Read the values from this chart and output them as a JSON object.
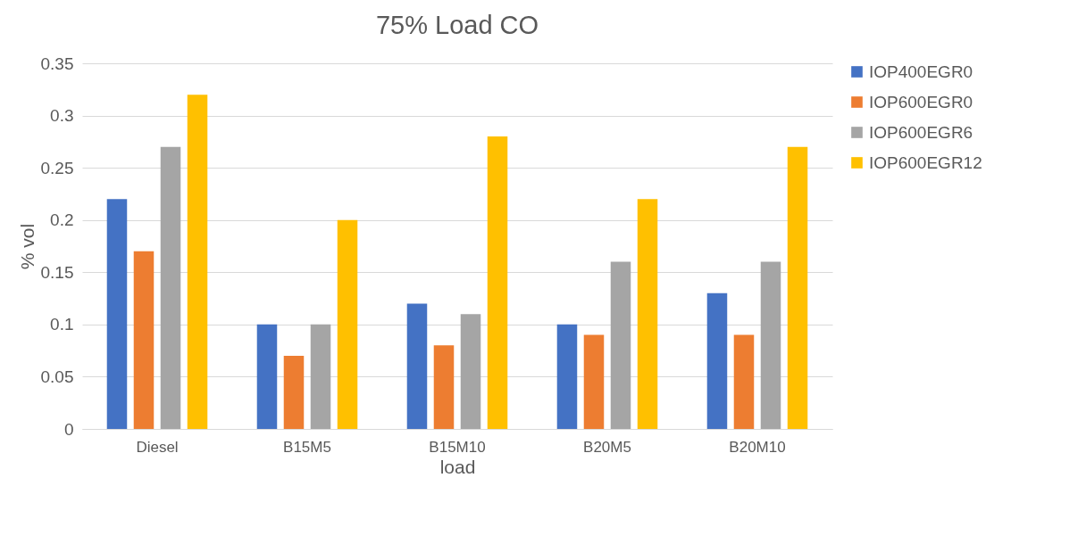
{
  "chart_data": {
    "type": "bar",
    "title": "75% Load CO",
    "xlabel": "load",
    "ylabel": "% vol",
    "categories": [
      "Diesel",
      "B15M5",
      "B15M10",
      "B20M5",
      "B20M10"
    ],
    "series": [
      {
        "name": "IOP400EGR0",
        "color": "#4472c4",
        "values": [
          0.22,
          0.1,
          0.12,
          0.1,
          0.13
        ]
      },
      {
        "name": "IOP600EGR0",
        "color": "#ed7d31",
        "values": [
          0.17,
          0.07,
          0.08,
          0.09,
          0.09
        ]
      },
      {
        "name": "IOP600EGR6",
        "color": "#a5a5a5",
        "values": [
          0.27,
          0.1,
          0.11,
          0.16,
          0.16
        ]
      },
      {
        "name": "IOP600EGR12",
        "color": "#ffc000",
        "values": [
          0.32,
          0.2,
          0.28,
          0.22,
          0.27
        ]
      }
    ],
    "ylim": [
      0,
      0.35
    ],
    "yticks": [
      0,
      0.05,
      0.1,
      0.15,
      0.2,
      0.25,
      0.3,
      0.35
    ],
    "grid": "y",
    "legend": "right"
  }
}
